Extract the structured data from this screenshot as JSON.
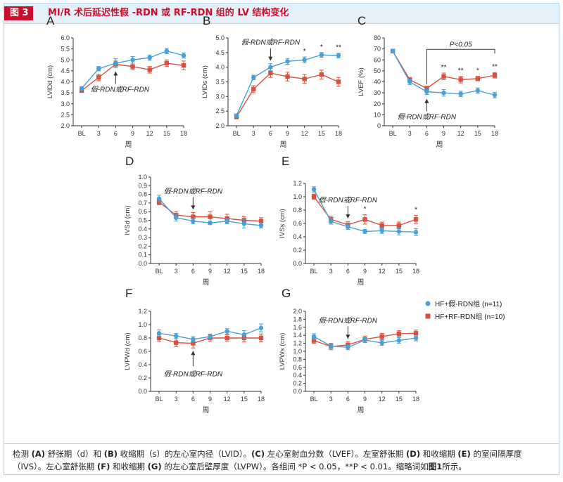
{
  "figure": {
    "label": "图 3",
    "title": "MI/R 术后延迟性假 -RDN 或 RF-RDN 组的 LV 结构变化",
    "caption_parts": [
      {
        "t": "检测 ",
        "b": false
      },
      {
        "t": "(A)",
        "b": true
      },
      {
        "t": " 舒张期（d）和 ",
        "b": false
      },
      {
        "t": "(B)",
        "b": true
      },
      {
        "t": " 收缩期（s）的左心室内径（LVID）。",
        "b": false
      },
      {
        "t": "(C)",
        "b": true
      },
      {
        "t": " 左心室射血分数（LVEF）。左室舒张期 ",
        "b": false
      },
      {
        "t": "(D)",
        "b": true
      },
      {
        "t": " 和收缩期 ",
        "b": false
      },
      {
        "t": "(E)",
        "b": true
      },
      {
        "t": " 的室间隔厚度（IVS）。左心室舒张期 ",
        "b": false
      },
      {
        "t": "(F)",
        "b": true
      },
      {
        "t": " 和收缩期 ",
        "b": false
      },
      {
        "t": "(G)",
        "b": true
      },
      {
        "t": " 的左心室后壁厚度（LVPW）。各组间 *P < 0.05，**P < 0.01。缩略词如",
        "b": false
      },
      {
        "t": "图1",
        "b": true
      },
      {
        "t": "所示。",
        "b": false
      }
    ]
  },
  "colors": {
    "sham": "#4a9fd4",
    "rf": "#d9503f",
    "axis": "#333333",
    "title_red": "#c8102e"
  },
  "legend": {
    "items": [
      {
        "label": "HF+假-RDN组 (n=11)",
        "color": "#4a9fd4",
        "marker": "circle"
      },
      {
        "label": "HF+RF-RDN组 (n=10)",
        "color": "#d9503f",
        "marker": "square"
      }
    ]
  },
  "chart_data": [
    {
      "panel": "A",
      "type": "line",
      "ylabel": "LVIDd (cm)",
      "xlabel": "周",
      "categories": [
        "BL",
        "3",
        "6",
        "9",
        "12",
        "15",
        "18"
      ],
      "ylim": [
        2.0,
        6.0
      ],
      "yticks": [
        "2.0",
        "2.5",
        "3.0",
        "3.5",
        "4.0",
        "4.5",
        "5.0",
        "5.5",
        "6.0"
      ],
      "series": [
        {
          "marker": "circle",
          "color": "#4a9fd4",
          "values": [
            3.7,
            4.6,
            4.85,
            5.0,
            5.1,
            5.4,
            5.2
          ],
          "err": [
            0.08,
            0.1,
            0.2,
            0.15,
            0.12,
            0.12,
            0.12
          ]
        },
        {
          "marker": "square",
          "color": "#d9503f",
          "values": [
            3.6,
            4.2,
            4.8,
            4.7,
            4.55,
            4.85,
            4.75
          ],
          "err": [
            0.08,
            0.15,
            0.15,
            0.15,
            0.15,
            0.15,
            0.2
          ]
        }
      ],
      "annotation": {
        "text": "假-RDN或RF-RDN",
        "arrow_at": "6"
      },
      "sig": []
    },
    {
      "panel": "B",
      "type": "line",
      "ylabel": "LVIDs (cm)",
      "xlabel": "周",
      "categories": [
        "BL",
        "3",
        "6",
        "9",
        "12",
        "15",
        "18"
      ],
      "ylim": [
        2.0,
        5.0
      ],
      "yticks": [
        "2.0",
        "2.5",
        "3.0",
        "3.5",
        "4.0",
        "4.5",
        "5.0"
      ],
      "series": [
        {
          "marker": "circle",
          "color": "#4a9fd4",
          "values": [
            2.35,
            3.65,
            4.0,
            4.2,
            4.25,
            4.42,
            4.4
          ],
          "err": [
            0.05,
            0.08,
            0.12,
            0.1,
            0.1,
            0.08,
            0.08
          ]
        },
        {
          "marker": "square",
          "color": "#d9503f",
          "values": [
            2.3,
            3.25,
            3.8,
            3.68,
            3.6,
            3.75,
            3.5
          ],
          "err": [
            0.05,
            0.12,
            0.15,
            0.15,
            0.15,
            0.15,
            0.15
          ]
        }
      ],
      "annotation": {
        "text": "假-RDN或RF-RDN",
        "arrow_at": "6"
      },
      "sig": [
        {
          "at": "12",
          "text": "*"
        },
        {
          "at": "15",
          "text": "*"
        },
        {
          "at": "18",
          "text": "**"
        }
      ]
    },
    {
      "panel": "C",
      "type": "line",
      "ylabel": "LVEF (%)",
      "xlabel": "周",
      "categories": [
        "BL",
        "3",
        "6",
        "9",
        "12",
        "15",
        "18"
      ],
      "ylim": [
        0,
        80
      ],
      "yticks": [
        "0",
        "10",
        "20",
        "30",
        "40",
        "50",
        "60",
        "70",
        "80"
      ],
      "series": [
        {
          "marker": "circle",
          "color": "#4a9fd4",
          "values": [
            68,
            40,
            31,
            30,
            29,
            32,
            28
          ],
          "err": [
            1.5,
            2.5,
            2.5,
            3.0,
            2.5,
            2.5,
            2.5
          ]
        },
        {
          "marker": "square",
          "color": "#d9503f",
          "values": [
            68,
            42,
            34,
            45,
            42,
            43,
            46
          ],
          "err": [
            1.5,
            2.0,
            2.0,
            3.0,
            3.0,
            2.0,
            2.5
          ]
        }
      ],
      "annotation": {
        "text": "假-RDN或RF-RDN",
        "arrow_at": "6"
      },
      "bracket": {
        "text": "P<0.05"
      },
      "sig": [
        {
          "at": "9",
          "text": "**"
        },
        {
          "at": "12",
          "text": "**"
        },
        {
          "at": "15",
          "text": "*"
        },
        {
          "at": "18",
          "text": "**"
        }
      ]
    },
    {
      "panel": "D",
      "type": "line",
      "ylabel": "IVSd (cm)",
      "xlabel": "周",
      "categories": [
        "BL",
        "3",
        "6",
        "9",
        "12",
        "15",
        "18"
      ],
      "ylim": [
        0.0,
        1.0
      ],
      "yticks": [
        "0.0",
        "0.1",
        "0.2",
        "0.3",
        "0.4",
        "0.5",
        "0.6",
        "0.7",
        "0.8",
        "0.9",
        "1.0"
      ],
      "series": [
        {
          "marker": "circle",
          "color": "#4a9fd4",
          "values": [
            0.75,
            0.53,
            0.49,
            0.47,
            0.49,
            0.46,
            0.44
          ],
          "err": [
            0.04,
            0.04,
            0.03,
            0.02,
            0.03,
            0.05,
            0.03
          ]
        },
        {
          "marker": "square",
          "color": "#d9503f",
          "values": [
            0.71,
            0.56,
            0.54,
            0.54,
            0.52,
            0.5,
            0.49
          ],
          "err": [
            0.03,
            0.04,
            0.05,
            0.06,
            0.05,
            0.04,
            0.04
          ]
        }
      ],
      "annotation": {
        "text": "假-RDN或RF-RDN",
        "arrow_at": "6"
      },
      "sig": []
    },
    {
      "panel": "E",
      "type": "line",
      "ylabel": "IVSs (cm)",
      "xlabel": "周",
      "categories": [
        "BL",
        "3",
        "6",
        "9",
        "12",
        "15",
        "18"
      ],
      "ylim": [
        0.0,
        1.2
      ],
      "yticks": [
        "0.0",
        "0.2",
        "0.4",
        "0.6",
        "0.8",
        "1.0",
        "1.2"
      ],
      "series": [
        {
          "marker": "circle",
          "color": "#4a9fd4",
          "values": [
            1.11,
            0.63,
            0.55,
            0.48,
            0.49,
            0.48,
            0.47
          ],
          "err": [
            0.04,
            0.04,
            0.04,
            0.03,
            0.04,
            0.05,
            0.05
          ]
        },
        {
          "marker": "square",
          "color": "#d9503f",
          "values": [
            1.0,
            0.66,
            0.58,
            0.66,
            0.57,
            0.57,
            0.66
          ],
          "err": [
            0.04,
            0.05,
            0.05,
            0.07,
            0.05,
            0.05,
            0.06
          ]
        }
      ],
      "annotation": {
        "text": "假-RDN或RF-RDN",
        "arrow_at": "6"
      },
      "sig": [
        {
          "at": "9",
          "text": "*"
        },
        {
          "at": "18",
          "text": "*"
        }
      ]
    },
    {
      "panel": "F",
      "type": "line",
      "ylabel": "LVPWd (cm)",
      "xlabel": "周",
      "categories": [
        "BL",
        "3",
        "6",
        "9",
        "12",
        "15",
        "18"
      ],
      "ylim": [
        0.0,
        1.2
      ],
      "yticks": [
        "0.0",
        "0.2",
        "0.4",
        "0.6",
        "0.8",
        "1.0",
        "1.2"
      ],
      "series": [
        {
          "marker": "circle",
          "color": "#4a9fd4",
          "values": [
            0.87,
            0.83,
            0.78,
            0.82,
            0.9,
            0.85,
            0.95
          ],
          "err": [
            0.05,
            0.04,
            0.04,
            0.04,
            0.04,
            0.06,
            0.06
          ]
        },
        {
          "marker": "square",
          "color": "#d9503f",
          "values": [
            0.8,
            0.73,
            0.72,
            0.8,
            0.8,
            0.8,
            0.8
          ],
          "err": [
            0.05,
            0.06,
            0.07,
            0.05,
            0.05,
            0.06,
            0.06
          ]
        }
      ],
      "annotation": {
        "text": "假-RDN或RF-RDN",
        "arrow_at": "6",
        "below": true
      },
      "sig": []
    },
    {
      "panel": "G",
      "type": "line",
      "ylabel": "LVPWs (cm)",
      "xlabel": "周",
      "categories": [
        "BL",
        "3",
        "6",
        "9",
        "12",
        "15",
        "18"
      ],
      "ylim": [
        0.0,
        2.0
      ],
      "yticks": [
        "0.0",
        "0.2",
        "0.4",
        "0.6",
        "0.8",
        "1.0",
        "1.2",
        "1.4",
        "1.6",
        "1.8",
        "2.0"
      ],
      "series": [
        {
          "marker": "circle",
          "color": "#4a9fd4",
          "values": [
            1.37,
            1.13,
            1.1,
            1.28,
            1.21,
            1.27,
            1.33
          ],
          "err": [
            0.07,
            0.06,
            0.06,
            0.06,
            0.06,
            0.07,
            0.07
          ]
        },
        {
          "marker": "square",
          "color": "#d9503f",
          "values": [
            1.27,
            1.12,
            1.16,
            1.3,
            1.37,
            1.44,
            1.45
          ],
          "err": [
            0.07,
            0.08,
            0.08,
            0.08,
            0.08,
            0.08,
            0.08
          ]
        }
      ],
      "annotation": {
        "text": "假-RDN或RF-RDN",
        "arrow_at": "6"
      },
      "sig": []
    }
  ]
}
